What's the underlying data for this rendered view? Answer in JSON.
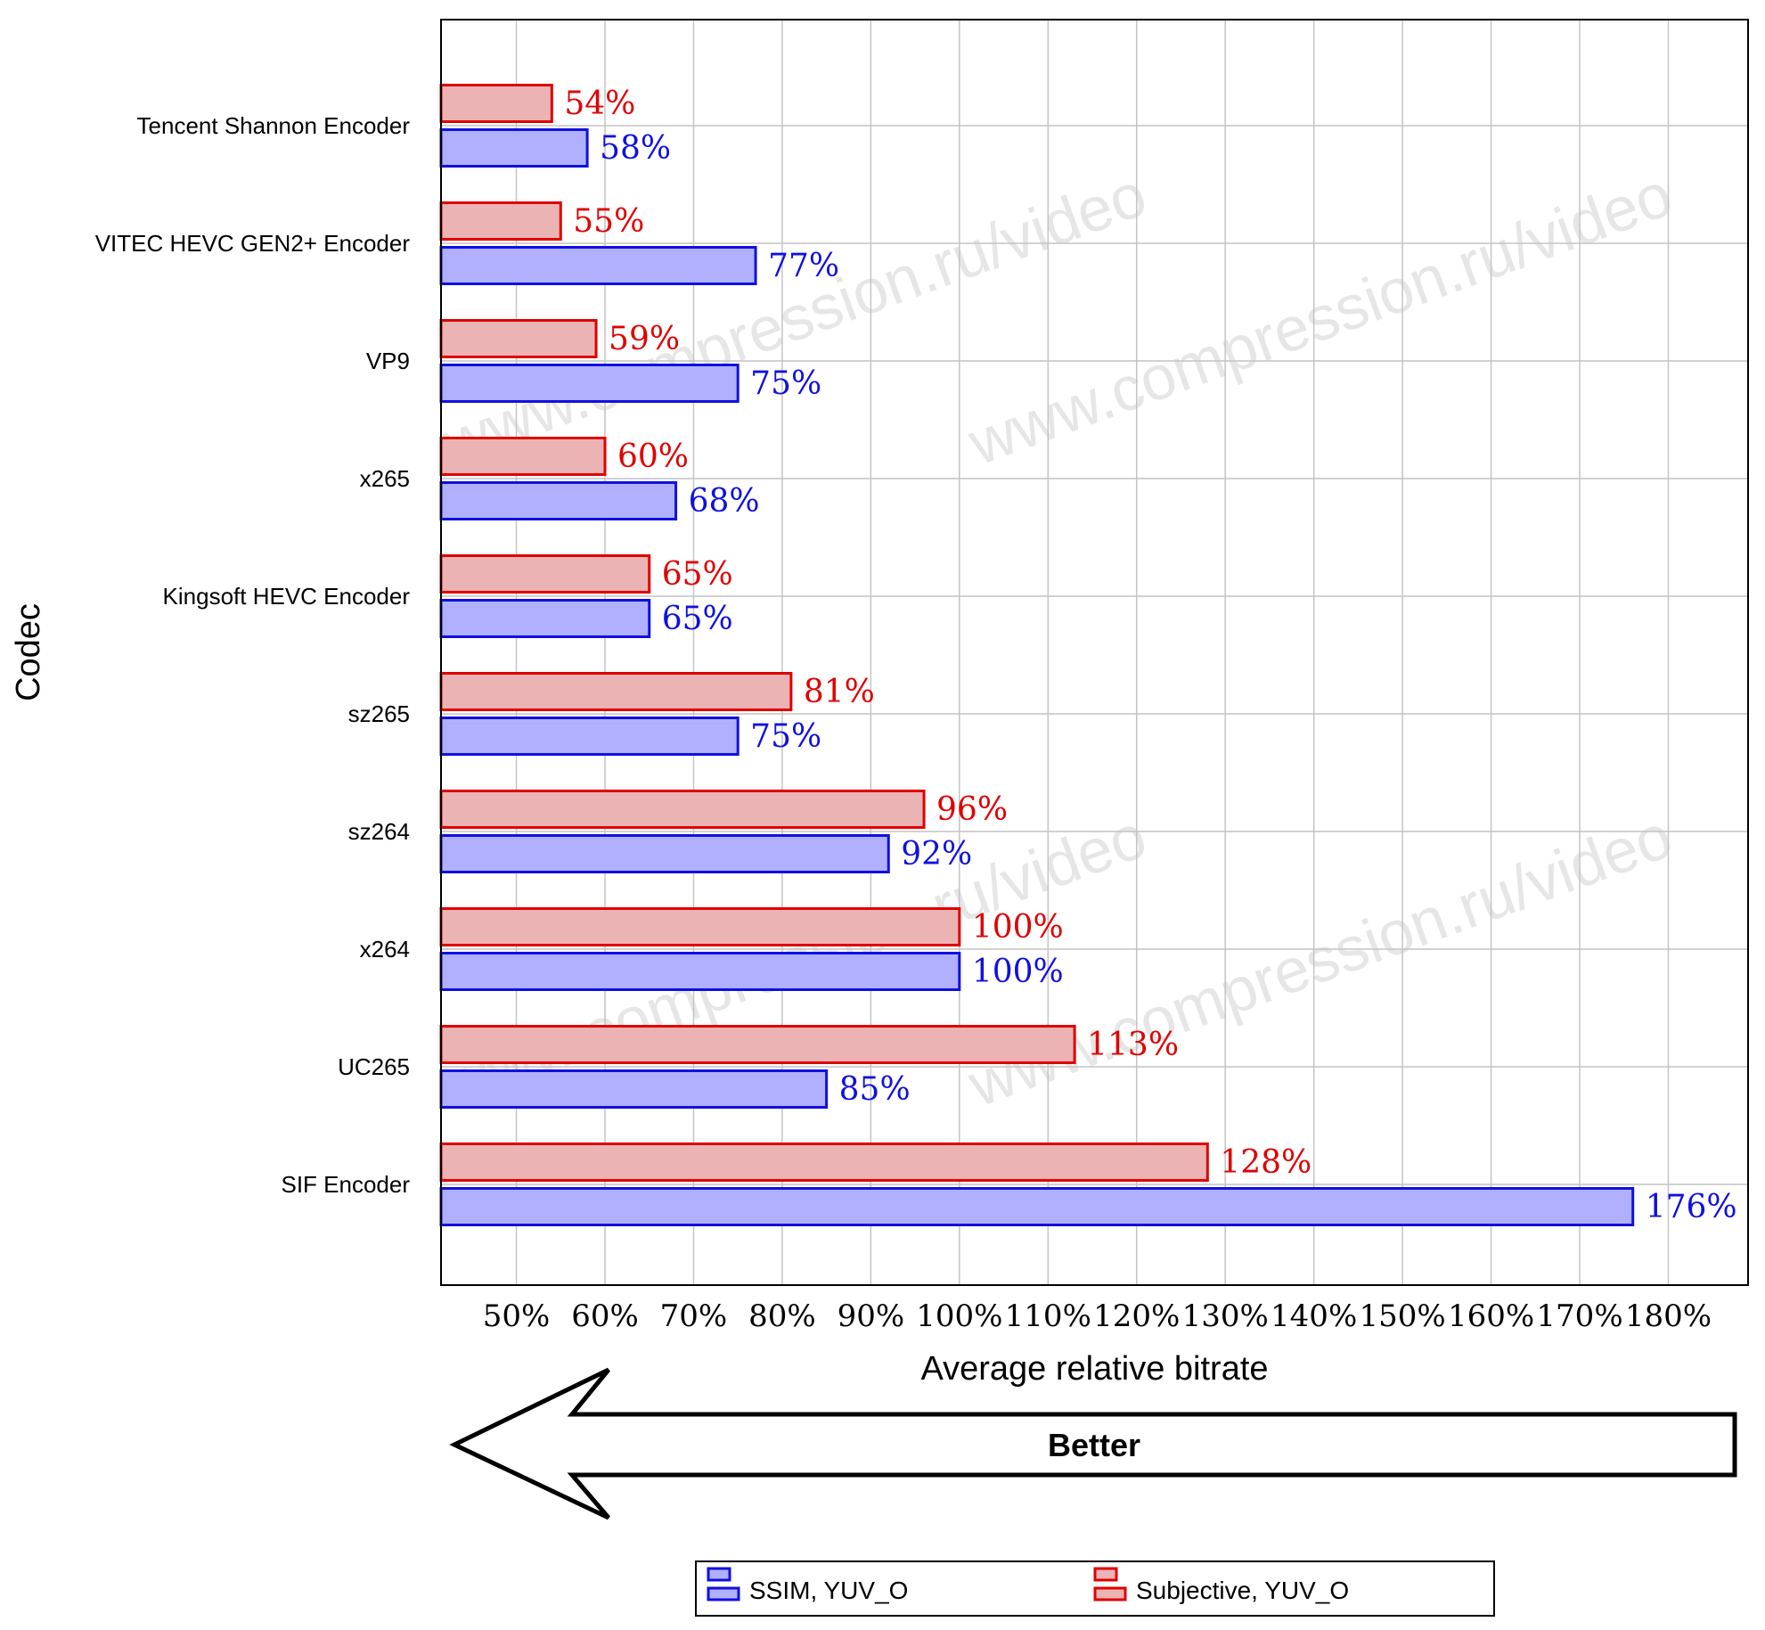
{
  "chart_data": {
    "type": "bar",
    "orientation": "horizontal",
    "categories": [
      "Tencent Shannon Encoder",
      "VITEC HEVC GEN2+ Encoder",
      "VP9",
      "x265",
      "Kingsoft HEVC Encoder",
      "sz265",
      "sz264",
      "x264",
      "UC265",
      "SIF Encoder"
    ],
    "series": [
      {
        "name": "Subjective, YUV_O",
        "color": "#e00000",
        "fill": "#ebb3b3",
        "values": [
          54,
          55,
          59,
          60,
          65,
          81,
          96,
          100,
          113,
          128
        ],
        "labels": [
          "54%",
          "55%",
          "59%",
          "60%",
          "65%",
          "81%",
          "96%",
          "100%",
          "113%",
          "128%"
        ]
      },
      {
        "name": "SSIM, YUV_O",
        "color": "#1010e0",
        "fill": "#b0b0ff",
        "values": [
          58,
          77,
          75,
          68,
          65,
          75,
          92,
          100,
          85,
          176
        ],
        "labels": [
          "58%",
          "77%",
          "75%",
          "68%",
          "65%",
          "75%",
          "92%",
          "100%",
          "85%",
          "176%"
        ]
      }
    ],
    "xlabel": "Average relative bitrate",
    "ylabel": "Codec",
    "xlim": [
      41.5,
      189
    ],
    "xticks": [
      50,
      60,
      70,
      80,
      90,
      100,
      110,
      120,
      130,
      140,
      150,
      160,
      170,
      180
    ],
    "xtick_labels": [
      "50%",
      "60%",
      "70%",
      "80%",
      "90%",
      "100%",
      "110%",
      "120%",
      "130%",
      "140%",
      "150%",
      "160%",
      "170%",
      "180%"
    ],
    "grid": true,
    "legend_position": "bottom"
  },
  "annotations": {
    "better_arrow_label": "Better",
    "watermark": "www.compression.ru/video"
  }
}
